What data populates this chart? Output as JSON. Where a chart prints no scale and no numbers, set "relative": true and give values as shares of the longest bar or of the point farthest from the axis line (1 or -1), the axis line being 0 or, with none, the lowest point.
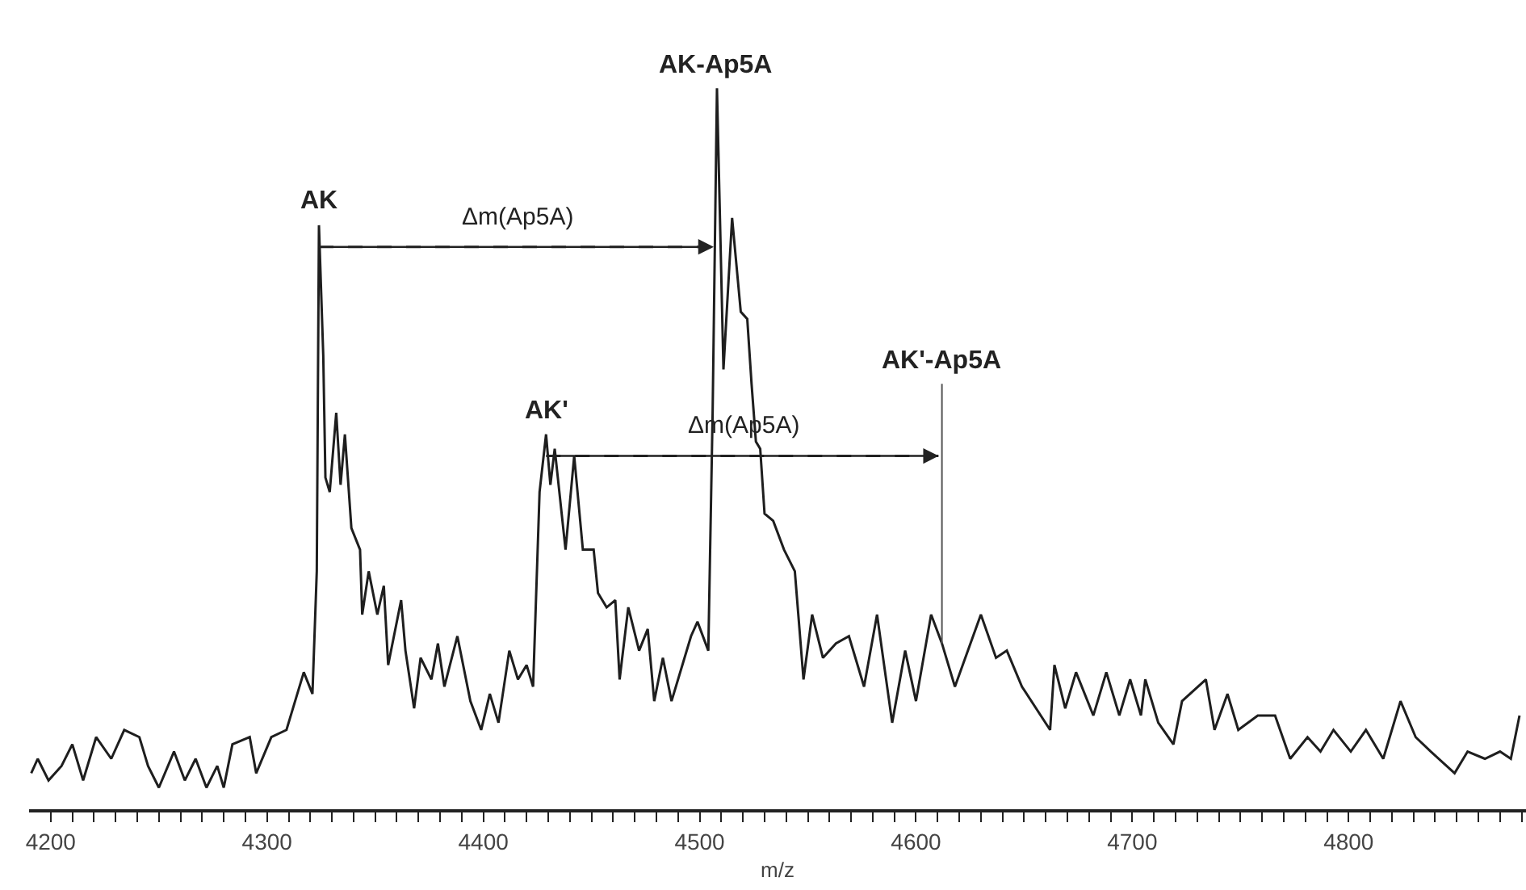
{
  "chart_data": {
    "type": "line",
    "relative": true,
    "xlabel": "m/z",
    "grid": false,
    "marker": "none",
    "line_style": "solid",
    "xlim": [
      4190,
      4882
    ],
    "xticks": [
      4200,
      {
        "value": 4210,
        "label": null
      },
      {
        "value": 4220,
        "label": null
      },
      {
        "value": 4230,
        "label": null
      },
      {
        "value": 4240,
        "label": null
      },
      {
        "value": 4250,
        "label": null
      },
      {
        "value": 4260,
        "label": null
      },
      {
        "value": 4270,
        "label": null
      },
      {
        "value": 4280,
        "label": null
      },
      {
        "value": 4290,
        "label": null
      },
      4300,
      {
        "value": 4310,
        "label": null
      },
      {
        "value": 4320,
        "label": null
      },
      {
        "value": 4330,
        "label": null
      },
      {
        "value": 4340,
        "label": null
      },
      {
        "value": 4350,
        "label": null
      },
      {
        "value": 4360,
        "label": null
      },
      {
        "value": 4370,
        "label": null
      },
      {
        "value": 4380,
        "label": null
      },
      {
        "value": 4390,
        "label": null
      },
      4400,
      {
        "value": 4410,
        "label": null
      },
      {
        "value": 4420,
        "label": null
      },
      {
        "value": 4430,
        "label": null
      },
      {
        "value": 4440,
        "label": null
      },
      {
        "value": 4450,
        "label": null
      },
      {
        "value": 4460,
        "label": null
      },
      {
        "value": 4470,
        "label": null
      },
      {
        "value": 4480,
        "label": null
      },
      {
        "value": 4490,
        "label": null
      },
      4500,
      {
        "value": 4510,
        "label": null
      },
      {
        "value": 4520,
        "label": null
      },
      {
        "value": 4530,
        "label": null
      },
      {
        "value": 4540,
        "label": null
      },
      {
        "value": 4550,
        "label": null
      },
      {
        "value": 4560,
        "label": null
      },
      {
        "value": 4570,
        "label": null
      },
      {
        "value": 4580,
        "label": null
      },
      {
        "value": 4590,
        "label": null
      },
      4600,
      {
        "value": 4610,
        "label": null
      },
      {
        "value": 4620,
        "label": null
      },
      {
        "value": 4630,
        "label": null
      },
      {
        "value": 4640,
        "label": null
      },
      {
        "value": 4650,
        "label": null
      },
      {
        "value": 4660,
        "label": null
      },
      {
        "value": 4670,
        "label": null
      },
      {
        "value": 4680,
        "label": null
      },
      {
        "value": 4690,
        "label": null
      },
      4700,
      {
        "value": 4710,
        "label": null
      },
      {
        "value": 4720,
        "label": null
      },
      {
        "value": 4730,
        "label": null
      },
      {
        "value": 4740,
        "label": null
      },
      {
        "value": 4750,
        "label": null
      },
      {
        "value": 4760,
        "label": null
      },
      {
        "value": 4770,
        "label": null
      },
      {
        "value": 4780,
        "label": null
      },
      {
        "value": 4790,
        "label": null
      },
      4800,
      {
        "value": 4810,
        "label": null
      },
      {
        "value": 4820,
        "label": null
      },
      {
        "value": 4830,
        "label": null
      },
      {
        "value": 4840,
        "label": null
      },
      {
        "value": 4850,
        "label": null
      },
      {
        "value": 4860,
        "label": null
      },
      {
        "value": 4870,
        "label": null
      },
      {
        "value": 4880,
        "label": null
      }
    ],
    "series": [
      {
        "color": "#1e1e1e",
        "x": [
          4191,
          4194,
          4199,
          4205,
          4210,
          4215,
          4221,
          4228,
          4234,
          4241,
          4245,
          4250,
          4257,
          4262,
          4267,
          4272,
          4277,
          4280,
          4284,
          4292,
          4295,
          4302,
          4309,
          4317,
          4321,
          4323,
          4324,
          4326,
          4327,
          4329,
          4332,
          4334,
          4336,
          4339,
          4343,
          4344,
          4347,
          4351,
          4354,
          4356,
          4362,
          4364,
          4368,
          4371,
          4376,
          4379,
          4382,
          4388,
          4394,
          4399,
          4403,
          4407,
          4412,
          4416,
          4420,
          4423,
          4426,
          4429,
          4431,
          4433,
          4438,
          4442,
          4446,
          4451,
          4453,
          4457,
          4461,
          4463,
          4467,
          4472,
          4476,
          4479,
          4483,
          4487,
          4492,
          4496,
          4499,
          4504,
          4506,
          4508,
          4511,
          4515,
          4519,
          4522,
          4524,
          4526,
          4528,
          4530,
          4534,
          4539,
          4544,
          4548,
          4552,
          4557,
          4563,
          4569,
          4576,
          4582,
          4589,
          4595,
          4600,
          4607,
          4612,
          4618,
          4630,
          4637,
          4642,
          4649,
          4662,
          4664,
          4669,
          4674,
          4682,
          4688,
          4694,
          4699,
          4704,
          4706,
          4712,
          4719,
          4723,
          4734,
          4738,
          4744,
          4749,
          4758,
          4766,
          4773,
          4781,
          4787,
          4793,
          4801,
          4808,
          4816,
          4824,
          4831,
          4838,
          4849,
          4855,
          4863,
          4870,
          4875,
          4879
        ],
        "values": [
          0.05,
          0.07,
          0.04,
          0.06,
          0.09,
          0.04,
          0.1,
          0.07,
          0.11,
          0.1,
          0.06,
          0.03,
          0.08,
          0.04,
          0.07,
          0.03,
          0.06,
          0.03,
          0.09,
          0.1,
          0.05,
          0.1,
          0.11,
          0.19,
          0.16,
          0.33,
          0.81,
          0.63,
          0.46,
          0.44,
          0.55,
          0.45,
          0.52,
          0.39,
          0.36,
          0.27,
          0.33,
          0.27,
          0.31,
          0.2,
          0.29,
          0.22,
          0.14,
          0.21,
          0.18,
          0.23,
          0.17,
          0.24,
          0.15,
          0.11,
          0.16,
          0.12,
          0.22,
          0.18,
          0.2,
          0.17,
          0.44,
          0.52,
          0.45,
          0.5,
          0.36,
          0.49,
          0.36,
          0.36,
          0.3,
          0.28,
          0.29,
          0.18,
          0.28,
          0.22,
          0.25,
          0.15,
          0.21,
          0.15,
          0.2,
          0.24,
          0.26,
          0.22,
          0.55,
          1.0,
          0.61,
          0.82,
          0.69,
          0.68,
          0.59,
          0.51,
          0.5,
          0.41,
          0.4,
          0.36,
          0.33,
          0.18,
          0.27,
          0.21,
          0.23,
          0.24,
          0.17,
          0.27,
          0.12,
          0.22,
          0.15,
          0.27,
          0.23,
          0.17,
          0.27,
          0.21,
          0.22,
          0.17,
          0.11,
          0.2,
          0.14,
          0.19,
          0.13,
          0.19,
          0.13,
          0.18,
          0.13,
          0.18,
          0.12,
          0.09,
          0.15,
          0.18,
          0.11,
          0.16,
          0.11,
          0.13,
          0.13,
          0.07,
          0.1,
          0.08,
          0.11,
          0.08,
          0.11,
          0.07,
          0.15,
          0.1,
          0.08,
          0.05,
          0.08,
          0.07,
          0.08,
          0.07,
          0.13
        ]
      }
    ],
    "ref_lines": [
      {
        "axis": "x",
        "value": 4612
      }
    ],
    "annotations": [
      {
        "text": "AK",
        "x": 4324,
        "y": 0.81
      },
      "Δm(Ap5A)",
      {
        "text": "AK-Ap5A",
        "x": 4508,
        "y": 1.0
      },
      {
        "text": "AK'",
        "x": 4429,
        "y": 0.52
      },
      "Δm(Ap5A)",
      {
        "text": "AK'-Ap5A",
        "x": 4612,
        "y": 0.59
      }
    ]
  }
}
